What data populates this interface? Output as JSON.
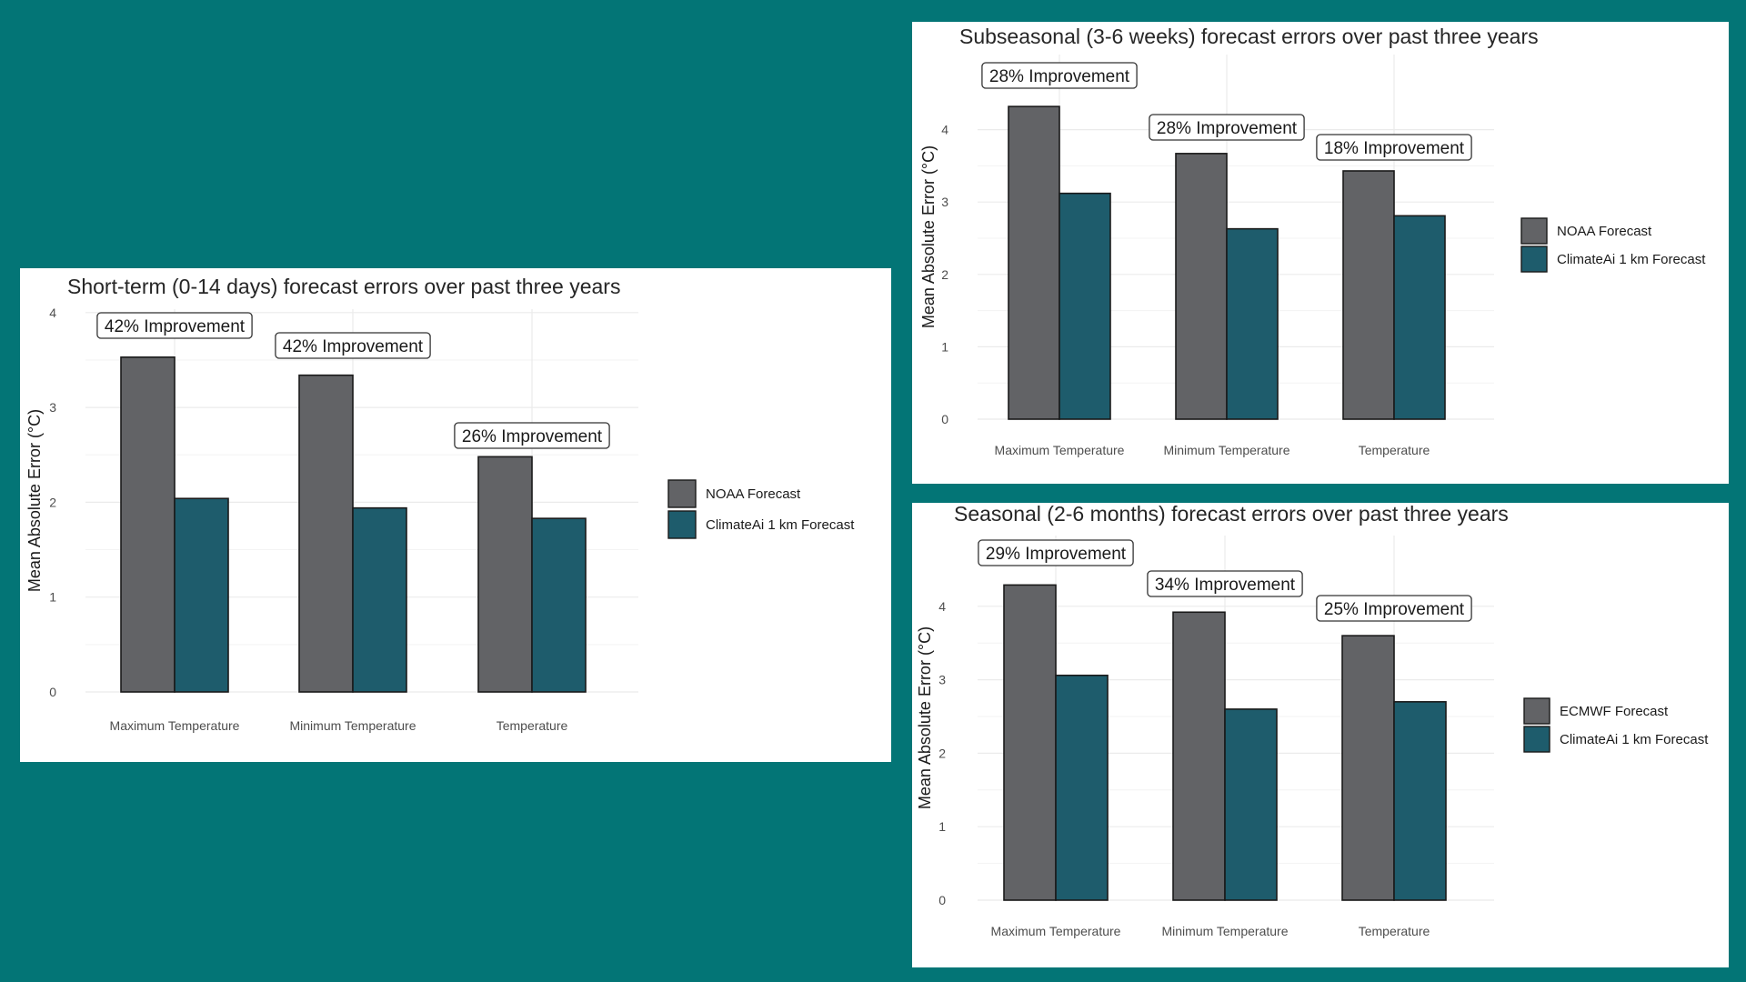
{
  "chart_data": [
    {
      "id": "short",
      "type": "bar",
      "title": "Short-term (0-14 days) forecast errors over past three years",
      "ylabel": "Mean Absolute Error (°C)",
      "xlabel": "",
      "ylim": [
        0,
        4
      ],
      "yticks": [
        0,
        1,
        2,
        3,
        4
      ],
      "grid": true,
      "legend_position": "right",
      "categories": [
        "Maximum Temperature",
        "Minimum Temperature",
        "Temperature"
      ],
      "series": [
        {
          "name": "NOAA Forecast",
          "color": "#626366",
          "values": [
            3.53,
            3.34,
            2.48
          ]
        },
        {
          "name": "ClimateAi 1 km Forecast",
          "color": "#1e5c6c",
          "values": [
            2.04,
            1.94,
            1.83
          ]
        }
      ],
      "annotations": [
        "42% Improvement",
        "42% Improvement",
        "26% Improvement"
      ]
    },
    {
      "id": "sub",
      "type": "bar",
      "title": "Subseasonal (3-6 weeks) forecast errors over past three years",
      "ylabel": "Mean Absolute Error (°C)",
      "xlabel": "",
      "ylim": [
        0,
        4.4
      ],
      "yticks": [
        0,
        1,
        2,
        3,
        4
      ],
      "grid": true,
      "legend_position": "right",
      "categories": [
        "Maximum Temperature",
        "Minimum Temperature",
        "Temperature"
      ],
      "series": [
        {
          "name": "NOAA Forecast",
          "color": "#626366",
          "values": [
            4.32,
            3.67,
            3.43
          ]
        },
        {
          "name": "ClimateAi 1 km Forecast",
          "color": "#1e5c6c",
          "values": [
            3.12,
            2.63,
            2.81
          ]
        }
      ],
      "annotations": [
        "28% Improvement",
        "28% Improvement",
        "18% Improvement"
      ]
    },
    {
      "id": "seas",
      "type": "bar",
      "title": "Seasonal (2-6 months) forecast errors over past three years",
      "ylabel": "Mean Absolute Error (°C)",
      "xlabel": "",
      "ylim": [
        0,
        4.4
      ],
      "yticks": [
        0,
        1,
        2,
        3,
        4
      ],
      "grid": true,
      "legend_position": "right",
      "categories": [
        "Maximum Temperature",
        "Minimum Temperature",
        "Temperature"
      ],
      "series": [
        {
          "name": "ECMWF Forecast",
          "color": "#626366",
          "values": [
            4.29,
            3.92,
            3.6
          ]
        },
        {
          "name": "ClimateAi 1 km Forecast",
          "color": "#1e5c6c",
          "values": [
            3.06,
            2.6,
            2.7
          ]
        }
      ],
      "annotations": [
        "29% Improvement",
        "34% Improvement",
        "25% Improvement"
      ]
    }
  ]
}
